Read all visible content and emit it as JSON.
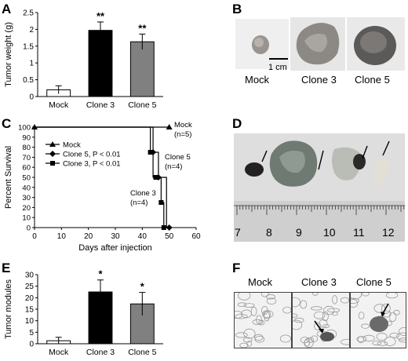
{
  "panels": {
    "A": "A",
    "B": "B",
    "C": "C",
    "D": "D",
    "E": "E",
    "F": "F"
  },
  "panel_b": {
    "labels": [
      "Mock",
      "Clone 3",
      "Clone 5"
    ],
    "scale_bar": "1 cm"
  },
  "panel_d": {
    "ruler_numbers": [
      "7",
      "8",
      "9",
      "10",
      "11",
      "12"
    ]
  },
  "panel_f": {
    "labels": [
      "Mock",
      "Clone 3",
      "Clone 5"
    ]
  },
  "colors": {
    "mock": "#ffffff",
    "clone3": "#000000",
    "clone5": "#808080"
  },
  "chart_data": [
    {
      "id": "A",
      "type": "bar",
      "categories": [
        "Mock",
        "Clone 3",
        "Clone 5"
      ],
      "values": [
        0.2,
        1.97,
        1.63
      ],
      "errors": [
        0.12,
        0.25,
        0.23
      ],
      "significance": [
        "",
        "**",
        "**"
      ],
      "ylabel": "Tumor weight (g)",
      "ylim": [
        0,
        2.5
      ],
      "yticks": [
        "0",
        "0.5",
        "1",
        "1.5",
        "2",
        "2.5"
      ]
    },
    {
      "id": "C",
      "type": "line",
      "xlabel": "Days after injection",
      "ylabel": "Percent Survival",
      "xlim": [
        0,
        60
      ],
      "ylim": [
        0,
        100
      ],
      "xticks": [
        "0",
        "10",
        "20",
        "30",
        "40",
        "50",
        "60"
      ],
      "yticks": [
        "0",
        "10",
        "20",
        "30",
        "40",
        "50",
        "60",
        "70",
        "80",
        "90",
        "100"
      ],
      "legend": [
        "Mock",
        "Clone 5, P < 0.01",
        "Clone 3, P < 0.01"
      ],
      "series": [
        {
          "name": "Mock",
          "marker": "triangle",
          "x": [
            0,
            50
          ],
          "y": [
            100,
            100
          ],
          "step": [
            [
              0,
              100
            ],
            [
              50,
              100
            ]
          ]
        },
        {
          "name": "Clone 5, P < 0.01",
          "marker": "diamond",
          "x": [
            44,
            46,
            50
          ],
          "y": [
            75,
            50,
            0
          ],
          "step": [
            [
              0,
              100
            ],
            [
              44,
              100
            ],
            [
              44,
              75
            ],
            [
              46,
              75
            ],
            [
              46,
              50
            ],
            [
              49,
              50
            ],
            [
              49,
              0
            ]
          ]
        },
        {
          "name": "Clone 3, P < 0.01",
          "marker": "square",
          "x": [
            43,
            45,
            47,
            48
          ],
          "y": [
            75,
            50,
            25,
            0
          ],
          "step": [
            [
              0,
              100
            ],
            [
              43,
              100
            ],
            [
              43,
              75
            ],
            [
              44,
              75
            ],
            [
              44,
              50
            ],
            [
              47,
              50
            ],
            [
              47,
              25
            ],
            [
              48,
              25
            ],
            [
              48,
              0
            ]
          ]
        }
      ],
      "annotations": [
        {
          "text": "Mock",
          "sub": "(n=5)"
        },
        {
          "text": "Clone 5",
          "sub": "(n=4)"
        },
        {
          "text": "Clone 3",
          "sub": "(n=4)"
        }
      ]
    },
    {
      "id": "E",
      "type": "bar",
      "categories": [
        "Mock",
        "Clone 3",
        "Clone 5"
      ],
      "values": [
        1.3,
        22.5,
        17.3
      ],
      "errors": [
        1.5,
        5.2,
        5.0
      ],
      "significance": [
        "",
        "*",
        "*"
      ],
      "ylabel": "Tumor modules",
      "ylim": [
        0,
        30
      ],
      "yticks": [
        "0",
        "5",
        "10",
        "15",
        "20",
        "25",
        "30"
      ]
    }
  ]
}
